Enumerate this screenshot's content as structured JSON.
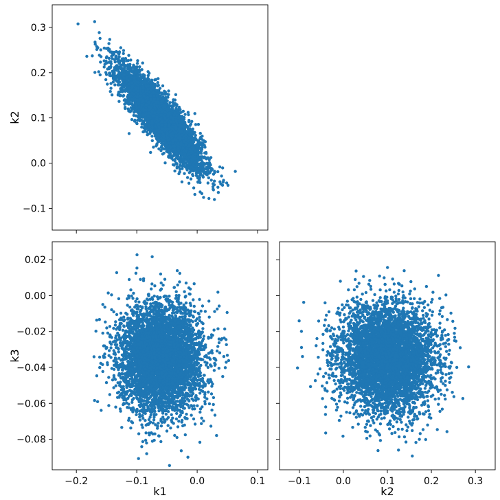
{
  "chart_data": [
    {
      "type": "scatter",
      "name": "k1-vs-k2",
      "xlabel": "",
      "ylabel": "k2",
      "xlim": [
        -0.24,
        0.117
      ],
      "ylim": [
        -0.148,
        0.35
      ],
      "xticks": [
        -0.2,
        -0.1,
        0.0,
        0.1
      ],
      "xtick_labels": [
        "",
        "",
        "",
        ""
      ],
      "yticks": [
        -0.1,
        0.0,
        0.1,
        0.2,
        0.3
      ],
      "ytick_labels": [
        "−0.1",
        "0.0",
        "0.1",
        "0.2",
        "0.3"
      ],
      "color": "#1f77b4",
      "distribution": {
        "x_mean": -0.06,
        "x_sd": 0.034,
        "y_mean": 0.1,
        "y_sd": 0.055,
        "correlation": -0.88,
        "n": 5000
      }
    },
    {
      "type": "scatter",
      "name": "k1-vs-k3",
      "xlabel": "k1",
      "ylabel": "k3",
      "xlim": [
        -0.24,
        0.117
      ],
      "ylim": [
        -0.097,
        0.03
      ],
      "xticks": [
        -0.2,
        -0.1,
        0.0,
        0.1
      ],
      "xtick_labels": [
        "−0.2",
        "−0.1",
        "0.0",
        "0.1"
      ],
      "yticks": [
        -0.08,
        -0.06,
        -0.04,
        -0.02,
        0.0,
        0.02
      ],
      "ytick_labels": [
        "−0.08",
        "−0.06",
        "−0.04",
        "−0.02",
        "0.00",
        "0.02"
      ],
      "color": "#1f77b4",
      "distribution": {
        "x_mean": -0.06,
        "x_sd": 0.034,
        "y_mean": -0.035,
        "y_sd": 0.015,
        "correlation": 0.0,
        "n": 5000
      }
    },
    {
      "type": "scatter",
      "name": "k2-vs-k3",
      "xlabel": "k2",
      "ylabel": "",
      "xlim": [
        -0.145,
        0.345
      ],
      "ylim": [
        -0.097,
        0.03
      ],
      "xticks": [
        -0.1,
        0.0,
        0.1,
        0.2,
        0.3
      ],
      "xtick_labels": [
        "−0.1",
        "0.0",
        "0.1",
        "0.2",
        "0.3"
      ],
      "yticks": [
        -0.08,
        -0.06,
        -0.04,
        -0.02,
        0.0,
        0.02
      ],
      "ytick_labels": [
        "",
        "",
        "",
        "",
        "",
        ""
      ],
      "color": "#1f77b4",
      "distribution": {
        "x_mean": 0.1,
        "x_sd": 0.055,
        "y_mean": -0.035,
        "y_sd": 0.015,
        "correlation": 0.0,
        "n": 5000
      }
    }
  ]
}
